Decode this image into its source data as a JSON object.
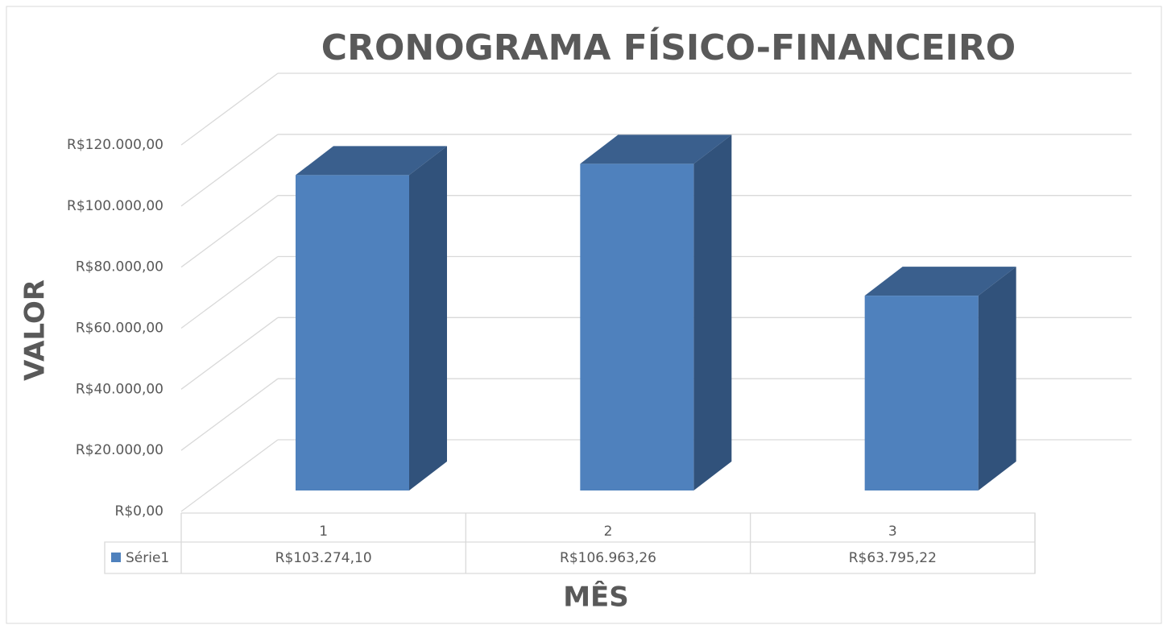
{
  "chart_data": {
    "type": "bar3d",
    "title": "CRONOGRAMA FÍSICO-FINANCEIRO",
    "x_label": "MÊS",
    "y_label": "VALOR",
    "categories": [
      "1",
      "2",
      "3"
    ],
    "series": [
      {
        "name": "Série1",
        "color": "#4f81bd",
        "values": [
          103274.1,
          106963.26,
          63795.22
        ],
        "value_labels": [
          "R$103.274,10",
          "R$106.963,26",
          "R$63.795,22"
        ]
      }
    ],
    "ylim": [
      0,
      120000
    ],
    "yticks": [
      {
        "value": 0,
        "label": "R$0,00"
      },
      {
        "value": 20000,
        "label": "R$20.000,00"
      },
      {
        "value": 40000,
        "label": "R$40.000,00"
      },
      {
        "value": 60000,
        "label": "R$60.000,00"
      },
      {
        "value": 80000,
        "label": "R$80.000,00"
      },
      {
        "value": 100000,
        "label": "R$100.000,00"
      },
      {
        "value": 120000,
        "label": "R$120.000,00"
      }
    ],
    "grid": true,
    "data_table": true
  }
}
